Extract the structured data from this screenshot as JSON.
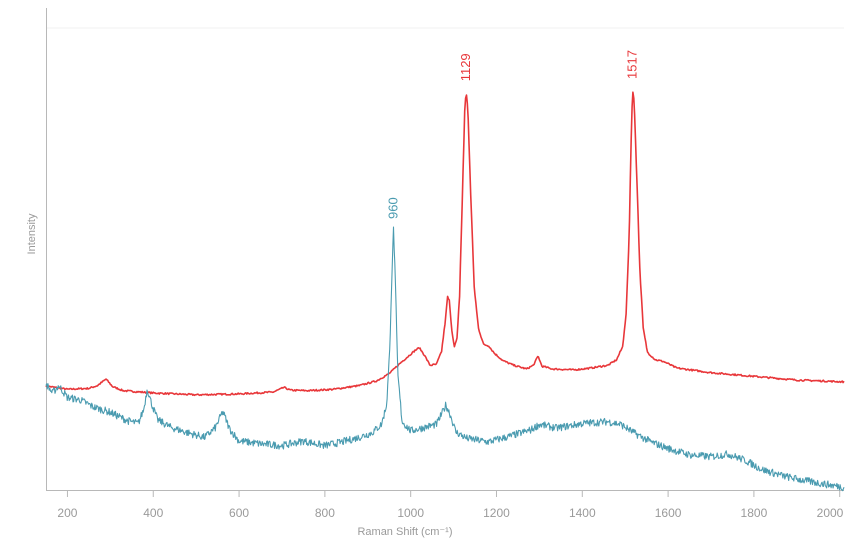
{
  "chart_data": {
    "type": "line",
    "title": "",
    "xlabel": "Raman Shift (cm⁻¹)",
    "ylabel": "Intensity",
    "xlim": [
      150,
      2010
    ],
    "ylim": [
      0,
      100
    ],
    "xticks": [
      200,
      400,
      600,
      800,
      1000,
      1200,
      1400,
      1600,
      1800,
      2000
    ],
    "grid": false,
    "legend": "none",
    "y_tick_labels": false,
    "series": [
      {
        "color": "#e8373a",
        "peak_label": "1129",
        "peak_label_2": "1517",
        "points": [
          [
            150,
            22.5
          ],
          [
            200,
            21.8
          ],
          [
            250,
            22.0
          ],
          [
            270,
            22.6
          ],
          [
            290,
            24.0
          ],
          [
            305,
            22.4
          ],
          [
            330,
            21.5
          ],
          [
            400,
            21.0
          ],
          [
            500,
            20.6
          ],
          [
            600,
            20.8
          ],
          [
            680,
            21.2
          ],
          [
            705,
            22.2
          ],
          [
            720,
            21.6
          ],
          [
            760,
            21.5
          ],
          [
            820,
            21.8
          ],
          [
            880,
            22.6
          ],
          [
            920,
            23.6
          ],
          [
            950,
            25.2
          ],
          [
            975,
            27.4
          ],
          [
            995,
            29.0
          ],
          [
            1010,
            30.2
          ],
          [
            1020,
            30.8
          ],
          [
            1032,
            29.2
          ],
          [
            1045,
            27.0
          ],
          [
            1060,
            27.2
          ],
          [
            1072,
            30.0
          ],
          [
            1080,
            36.0
          ],
          [
            1086,
            41.8
          ],
          [
            1090,
            41.0
          ],
          [
            1096,
            34.5
          ],
          [
            1102,
            31.0
          ],
          [
            1108,
            32.8
          ],
          [
            1114,
            42.0
          ],
          [
            1120,
            62.0
          ],
          [
            1126,
            82.0
          ],
          [
            1129,
            86.3
          ],
          [
            1133,
            83.0
          ],
          [
            1140,
            64.0
          ],
          [
            1148,
            44.0
          ],
          [
            1158,
            35.0
          ],
          [
            1170,
            31.5
          ],
          [
            1182,
            31.2
          ],
          [
            1195,
            29.6
          ],
          [
            1215,
            28.0
          ],
          [
            1240,
            27.0
          ],
          [
            1270,
            26.2
          ],
          [
            1286,
            27.0
          ],
          [
            1297,
            29.0
          ],
          [
            1306,
            26.8
          ],
          [
            1330,
            26.2
          ],
          [
            1380,
            26.0
          ],
          [
            1420,
            26.4
          ],
          [
            1460,
            27.0
          ],
          [
            1480,
            28.2
          ],
          [
            1494,
            31.0
          ],
          [
            1502,
            38.0
          ],
          [
            1509,
            54.0
          ],
          [
            1514,
            76.0
          ],
          [
            1517,
            86.8
          ],
          [
            1521,
            84.0
          ],
          [
            1527,
            68.0
          ],
          [
            1534,
            48.0
          ],
          [
            1542,
            35.0
          ],
          [
            1552,
            29.8
          ],
          [
            1570,
            28.2
          ],
          [
            1590,
            27.8
          ],
          [
            1620,
            26.4
          ],
          [
            1700,
            25.4
          ],
          [
            1800,
            24.6
          ],
          [
            1900,
            23.8
          ],
          [
            1960,
            23.6
          ],
          [
            2010,
            23.4
          ]
        ]
      },
      {
        "color": "#4a9bb0",
        "peak_label": "960",
        "points": [
          [
            150,
            23.0
          ],
          [
            165,
            21.0
          ],
          [
            180,
            22.6
          ],
          [
            200,
            20.0
          ],
          [
            230,
            19.5
          ],
          [
            260,
            18.0
          ],
          [
            300,
            16.8
          ],
          [
            340,
            15.0
          ],
          [
            365,
            14.4
          ],
          [
            378,
            17.5
          ],
          [
            386,
            22.0
          ],
          [
            395,
            19.0
          ],
          [
            410,
            15.2
          ],
          [
            440,
            13.6
          ],
          [
            480,
            12.4
          ],
          [
            520,
            11.4
          ],
          [
            545,
            13.5
          ],
          [
            562,
            17.0
          ],
          [
            578,
            13.2
          ],
          [
            600,
            10.6
          ],
          [
            650,
            10.0
          ],
          [
            700,
            9.6
          ],
          [
            750,
            10.6
          ],
          [
            800,
            9.6
          ],
          [
            840,
            10.4
          ],
          [
            880,
            11.4
          ],
          [
            910,
            12.4
          ],
          [
            932,
            14.2
          ],
          [
            944,
            18.5
          ],
          [
            951,
            30.0
          ],
          [
            956,
            46.0
          ],
          [
            960,
            56.5
          ],
          [
            964,
            46.0
          ],
          [
            970,
            25.0
          ],
          [
            980,
            14.8
          ],
          [
            1000,
            12.8
          ],
          [
            1030,
            13.5
          ],
          [
            1060,
            14.2
          ],
          [
            1072,
            16.4
          ],
          [
            1082,
            18.4
          ],
          [
            1092,
            16.4
          ],
          [
            1105,
            12.6
          ],
          [
            1130,
            11.2
          ],
          [
            1180,
            10.4
          ],
          [
            1230,
            11.6
          ],
          [
            1280,
            13.0
          ],
          [
            1300,
            14.2
          ],
          [
            1340,
            13.4
          ],
          [
            1400,
            14.4
          ],
          [
            1460,
            14.8
          ],
          [
            1490,
            14.2
          ],
          [
            1520,
            12.4
          ],
          [
            1560,
            10.4
          ],
          [
            1600,
            9.0
          ],
          [
            1650,
            7.6
          ],
          [
            1700,
            7.2
          ],
          [
            1740,
            7.8
          ],
          [
            1780,
            6.4
          ],
          [
            1820,
            4.4
          ],
          [
            1870,
            3.0
          ],
          [
            1920,
            2.0
          ],
          [
            1970,
            1.2
          ],
          [
            2010,
            0.6
          ]
        ]
      }
    ]
  }
}
